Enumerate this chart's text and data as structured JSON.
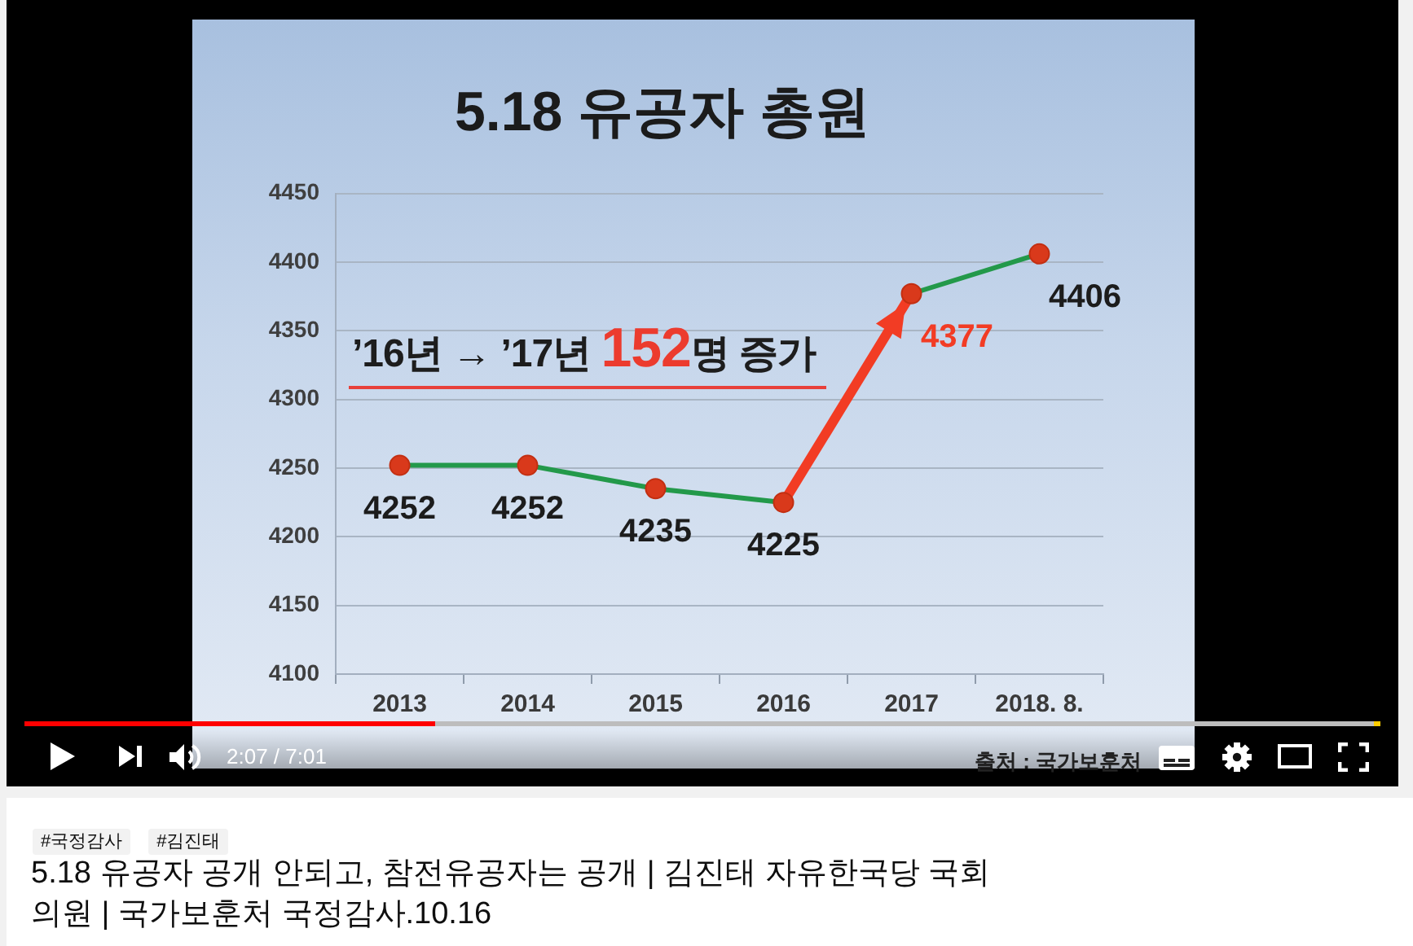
{
  "chart_data": {
    "type": "line",
    "title": "5.18 유공자 총원",
    "categories": [
      "2013",
      "2014",
      "2015",
      "2016",
      "2017",
      "2018. 8."
    ],
    "series": [
      {
        "color": "#23994a",
        "colors": [
          "#23994a",
          "#23994a",
          "#23994a",
          "#23994a",
          "#f23c24",
          "#23994a"
        ],
        "values": [
          4252,
          4252,
          4235,
          4225,
          4377,
          4406
        ]
      }
    ],
    "ylim": [
      4100,
      4450
    ],
    "yticks": [
      4100,
      4150,
      4200,
      4250,
      4300,
      4350,
      4400,
      4450
    ],
    "grid": "y",
    "legend": false,
    "marker": "circle",
    "data_labels": true,
    "annotations": [
      "’16년 → ’17년 152명 증가",
      "출처 : 국가보훈처",
      "2:07 / 7:01",
      "#국정감사",
      "#김진태",
      "5.18 유공자 공개 안되고, 참전유공자는 공개 | 김진태 자유한국당 국회의원 | 국가보훈처 국정감사.10.16"
    ]
  }
}
